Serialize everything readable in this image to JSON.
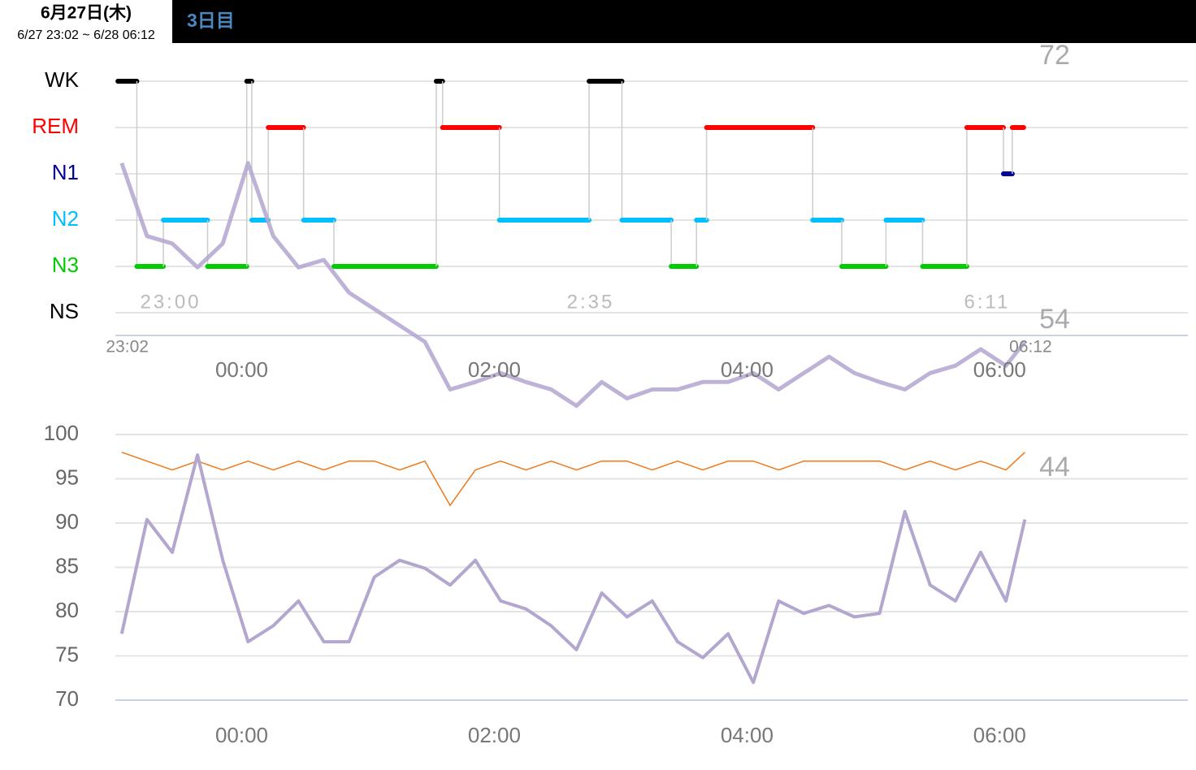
{
  "header": {
    "date": "6月27日(木)",
    "range": "6/27 23:02 ~ 6/28 06:12",
    "day": "3日目"
  },
  "chart_data": [
    {
      "type": "hypnogram",
      "categories": [
        "WK",
        "REM",
        "N1",
        "N2",
        "N3",
        "NS"
      ],
      "category_colors": [
        "#000000",
        "#ff0000",
        "#000099",
        "#00bfff",
        "#00cc00",
        "#000000"
      ],
      "segments": {
        "starts": [
          -0.98,
          -0.83,
          -0.62,
          -0.27,
          0.04,
          0.08,
          0.21,
          0.49,
          0.73,
          1.54,
          1.59,
          2.04,
          2.75,
          3.01,
          3.4,
          3.6,
          3.68,
          4.52,
          4.75,
          5.1,
          5.39,
          5.74,
          6.03,
          6.1
        ],
        "ends": [
          -0.83,
          -0.62,
          -0.27,
          0.04,
          0.08,
          0.21,
          0.49,
          0.73,
          1.54,
          1.59,
          2.04,
          2.75,
          3.01,
          3.4,
          3.6,
          3.68,
          4.52,
          4.75,
          5.1,
          5.39,
          5.74,
          6.03,
          6.1,
          6.19
        ],
        "stages": [
          "WK",
          "N3",
          "N2",
          "N3",
          "WK",
          "N2",
          "REM",
          "N2",
          "N3",
          "WK",
          "REM",
          "N2",
          "WK",
          "N2",
          "N3",
          "N2",
          "REM",
          "N2",
          "N3",
          "N2",
          "N3",
          "REM",
          "N1",
          "REM"
        ]
      },
      "x": [
        -0.95,
        -0.75,
        -0.55,
        -0.35,
        -0.15,
        0.05,
        0.25,
        0.45,
        0.65,
        0.85,
        1.05,
        1.25,
        1.45,
        1.65,
        1.85,
        2.05,
        2.25,
        2.45,
        2.65,
        2.85,
        3.05,
        3.25,
        3.45,
        3.65,
        3.85,
        4.05,
        4.25,
        4.45,
        4.65,
        4.85,
        5.05,
        5.25,
        5.45,
        5.65,
        5.85,
        6.05,
        6.2
      ],
      "series": [
        {
          "color": "#b3a6cf",
          "values": [
            68.5,
            63.6,
            63.1,
            61.5,
            63.1,
            68.5,
            63.6,
            61.5,
            62,
            59.8,
            58.7,
            57.6,
            56.5,
            53.3,
            53.8,
            54.4,
            53.8,
            53.3,
            52.2,
            53.8,
            52.7,
            53.3,
            53.3,
            53.8,
            53.8,
            54.4,
            53.3,
            54.4,
            55.5,
            54.4,
            53.8,
            53.3,
            54.4,
            54.9,
            56,
            54.9,
            56.5
          ]
        }
      ],
      "ylim": [
        50,
        74
      ],
      "side_labels": [
        72,
        54
      ],
      "xlim": [
        -1,
        7.49
      ],
      "xticks": [
        {
          "value": 0,
          "label": "00:00"
        },
        {
          "value": 2,
          "label": "02:00"
        },
        {
          "value": 4,
          "label": "04:00"
        },
        {
          "value": 6,
          "label": "06:00"
        }
      ],
      "start_label": {
        "value": -0.97,
        "label": "23:02"
      },
      "end_label": {
        "value": 6.2,
        "label": "06:12"
      },
      "annotations": [
        "23:00",
        "2:35",
        "6:11"
      ]
    },
    {
      "type": "line",
      "x": [
        -0.95,
        -0.75,
        -0.55,
        -0.35,
        -0.15,
        0.05,
        0.25,
        0.45,
        0.65,
        0.85,
        1.05,
        1.25,
        1.45,
        1.65,
        1.85,
        2.05,
        2.25,
        2.45,
        2.65,
        2.85,
        3.05,
        3.25,
        3.45,
        3.65,
        3.85,
        4.05,
        4.25,
        4.45,
        4.65,
        4.85,
        5.05,
        5.25,
        5.45,
        5.65,
        5.85,
        6.05,
        6.2
      ],
      "series": [
        {
          "color": "#f07818",
          "values": [
            98,
            97,
            96,
            97,
            96,
            97,
            96,
            97,
            96,
            97,
            97,
            96,
            97,
            92,
            96,
            97,
            96,
            97,
            96,
            97,
            97,
            96,
            97,
            96,
            97,
            97,
            96,
            97,
            97,
            97,
            97,
            96,
            97,
            96,
            97,
            96,
            98
          ]
        },
        {
          "color": "#b3a6cf",
          "values": [
            77.5,
            90.4,
            86.7,
            97.7,
            85.8,
            76.6,
            78.4,
            81.2,
            76.6,
            76.6,
            83.9,
            85.8,
            84.9,
            83,
            85.8,
            81.2,
            80.3,
            78.4,
            75.7,
            82.1,
            79.4,
            81.2,
            76.6,
            74.8,
            77.5,
            72,
            81.2,
            79.8,
            80.7,
            79.4,
            79.8,
            91.3,
            83,
            81.2,
            86.7,
            81.2,
            90.4
          ]
        }
      ],
      "ylim": [
        70,
        100
      ],
      "yticks": [
        70,
        75,
        80,
        85,
        90,
        95,
        100
      ],
      "side_label": 44,
      "xlim": [
        -1,
        7.49
      ],
      "xticks": [
        {
          "value": 0,
          "label": "00:00"
        },
        {
          "value": 2,
          "label": "02:00"
        },
        {
          "value": 4,
          "label": "04:00"
        },
        {
          "value": 6,
          "label": "06:00"
        }
      ],
      "grid": true
    }
  ]
}
